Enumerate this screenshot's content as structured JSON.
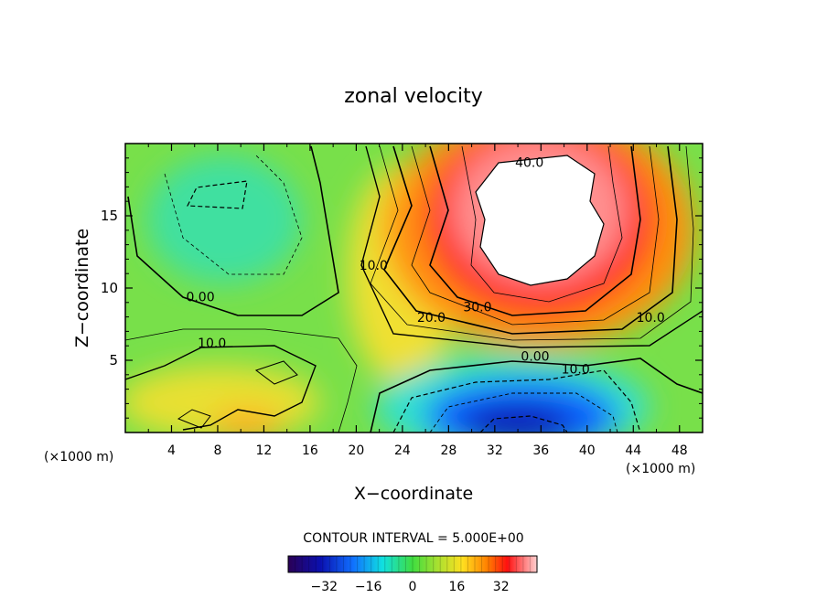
{
  "chart_data": {
    "type": "heatmap",
    "title": "zonal velocity",
    "xlabel": "X−coordinate",
    "ylabel": "Z−coordinate",
    "x_unit_left": "(×1000 m)",
    "x_unit_right": "(×1000 m)",
    "xlim": [
      0,
      50
    ],
    "ylim": [
      0,
      20
    ],
    "x_ticks": [
      4,
      8,
      12,
      16,
      20,
      24,
      28,
      32,
      36,
      40,
      44,
      48
    ],
    "y_ticks": [
      5,
      10,
      15
    ],
    "contour_interval_text": "CONTOUR INTERVAL = 5.000E+00",
    "contour_interval": 5,
    "contour_labels": [
      {
        "text": "40.0",
        "x": 35,
        "y": 18.5
      },
      {
        "text": "30.0",
        "x": 30.5,
        "y": 8.5
      },
      {
        "text": "20.0",
        "x": 26.5,
        "y": 7.8
      },
      {
        "text": "10.0",
        "x": 21.5,
        "y": 11.4
      },
      {
        "text": "10.0",
        "x": 45.5,
        "y": 7.8
      },
      {
        "text": "0.00",
        "x": 6.5,
        "y": 9.2
      },
      {
        "text": "10.0",
        "x": 7.5,
        "y": 6.0
      },
      {
        "text": "0.00",
        "x": 35.5,
        "y": 5.1
      },
      {
        "text": "10.0",
        "x": 39,
        "y": 4.2
      }
    ],
    "features": [
      {
        "kind": "max",
        "center": [
          35.5,
          14.5
        ],
        "value_gt": 40
      },
      {
        "kind": "min",
        "center": [
          35,
          1.0
        ],
        "value_lt": -30
      },
      {
        "kind": "min",
        "center": [
          10,
          16.0
        ],
        "value": -5
      }
    ],
    "colorbar": {
      "ticks": [
        "−32",
        "−16",
        "0",
        "16",
        "32"
      ],
      "tick_values": [
        -32,
        -16,
        0,
        16,
        32
      ],
      "range": [
        -45,
        45
      ]
    },
    "grid": false
  }
}
